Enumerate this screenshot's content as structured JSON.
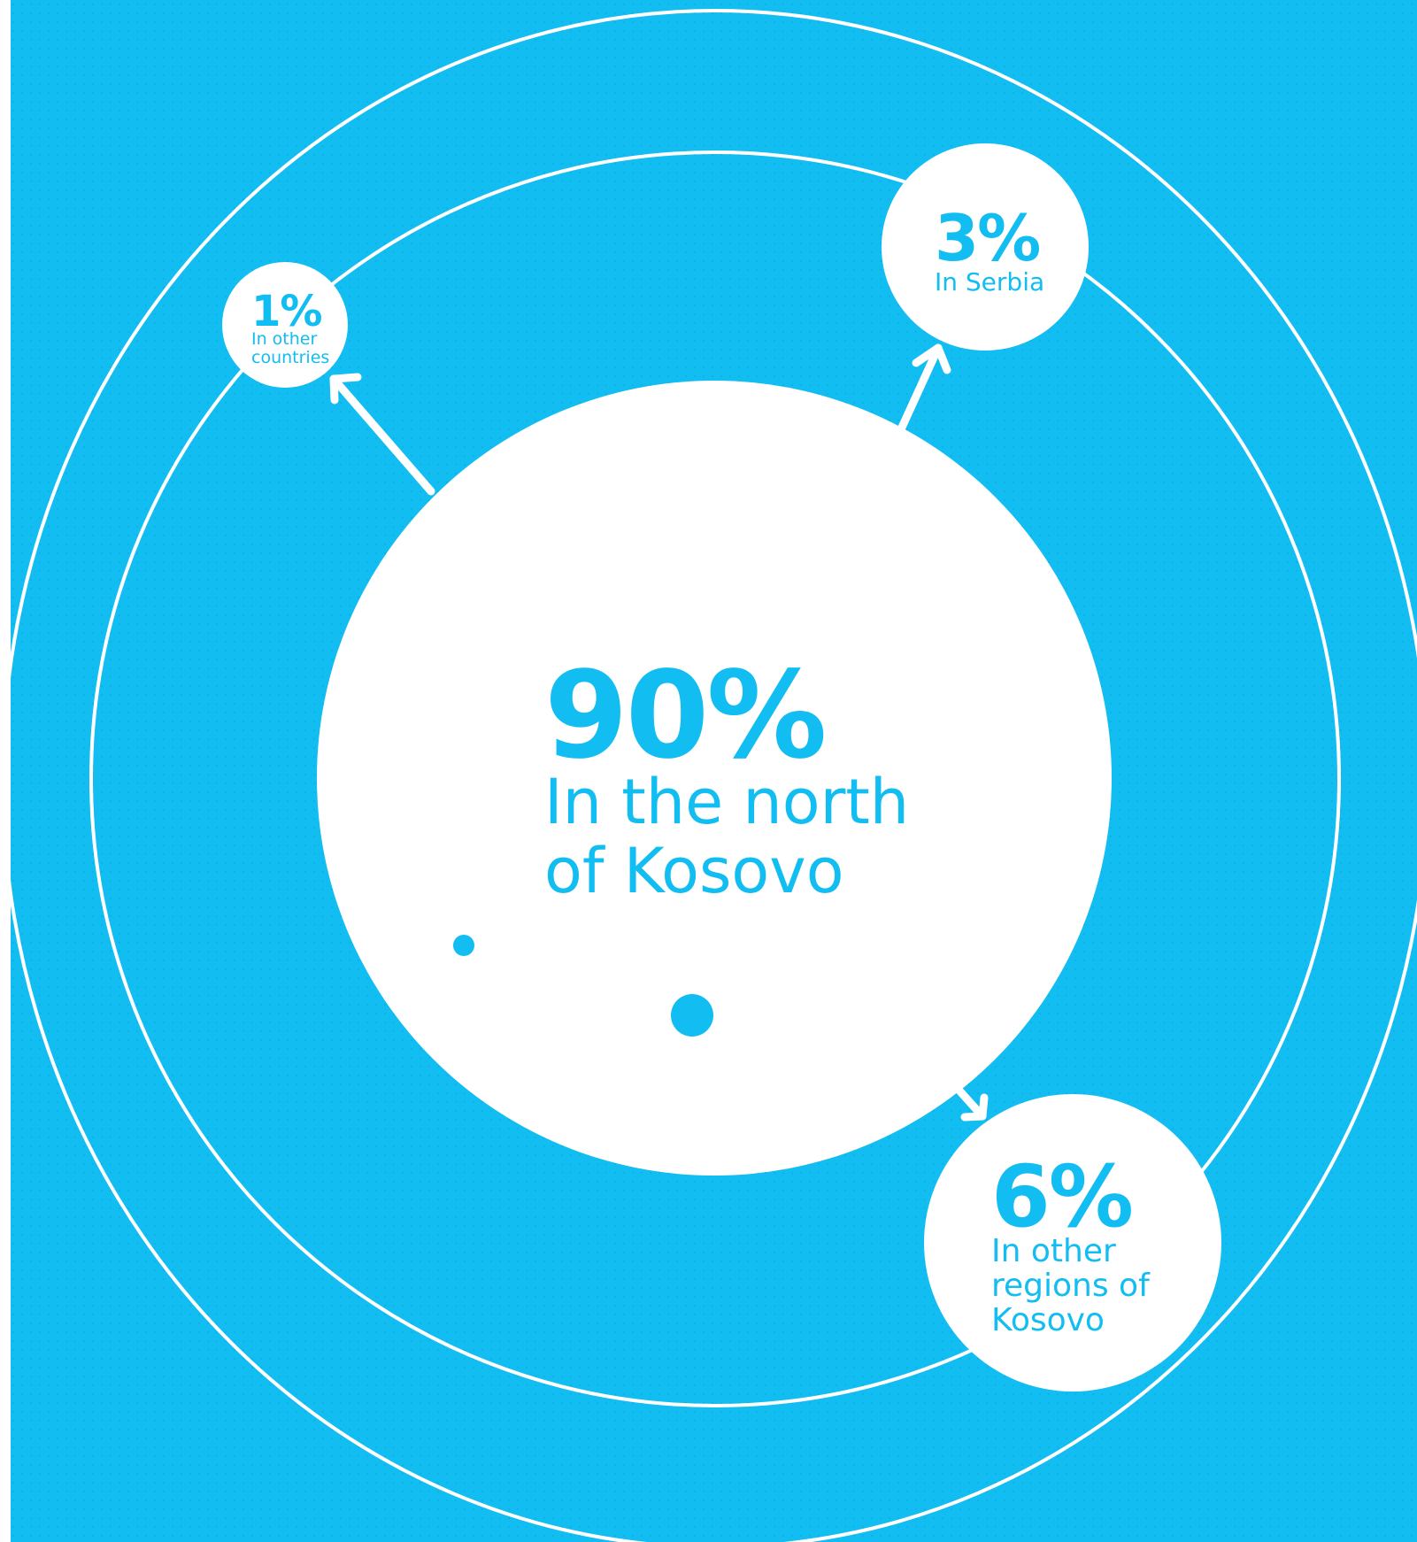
{
  "colors": {
    "background": "#12bdf2",
    "foreground": "#ffffff",
    "accent_text": "#12bdf2",
    "dot_pattern": "#0fa9db"
  },
  "main": {
    "percent": "90%",
    "label_line1": "In the north",
    "label_line2": "of Kosovo",
    "value": 90
  },
  "satellites": [
    {
      "id": "other-countries",
      "percent": "1%",
      "lines": [
        "In other",
        "countries"
      ],
      "value": 1
    },
    {
      "id": "serbia",
      "percent": "3%",
      "lines": [
        "In Serbia"
      ],
      "value": 3
    },
    {
      "id": "other-regions",
      "percent": "6%",
      "lines": [
        "In other",
        "regions of",
        "Kosovo"
      ],
      "value": 6
    }
  ]
}
